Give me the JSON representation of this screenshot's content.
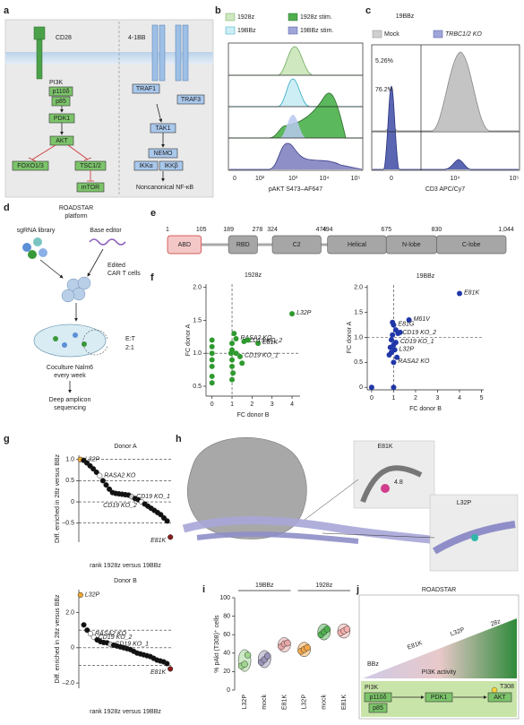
{
  "figure": {
    "panel_labels": [
      "a",
      "b",
      "c",
      "d",
      "e",
      "f",
      "g",
      "h",
      "i",
      "j"
    ],
    "a": {
      "cd28": "CD28",
      "bb": "4-1BB",
      "pi3k": "PI3K",
      "p110": "p110δ",
      "p85": "p85",
      "pdk1": "PDK1",
      "akt": "AKT",
      "foxo": "FOXO1/3",
      "tsc": "TSC1/2",
      "mtor": "mTOR",
      "traf1": "TRAF1",
      "traf3": "TRAF3",
      "tak1": "TAK1",
      "nemo": "NEMO",
      "ikka": "IKKα",
      "ikkb": "IKKβ",
      "nfkb": "Noncanonical NF-κB"
    },
    "b": {
      "legend": [
        "1928z",
        "1928z stim.",
        "19BBz",
        "19BBz stim."
      ],
      "xticks": [
        "0",
        "10²",
        "10³",
        "10⁴",
        "10⁵"
      ],
      "xlabel": "pAKT S473–AF647"
    },
    "c": {
      "title": "19BBz",
      "legend": [
        "Mock",
        "TRBC1/2 KO"
      ],
      "annotations": [
        "5.26%",
        "76.2%"
      ],
      "xticks": [
        "0",
        "10⁴",
        "10⁵"
      ],
      "xlabel": "CD3 APC/Cy7"
    },
    "d": {
      "title": [
        "ROADSTAR",
        "platform"
      ],
      "library": "sgRNA library",
      "editor": "Base editor",
      "edited": [
        "Edited",
        "CAR T cells"
      ],
      "ratio": [
        "E:T",
        "2:1"
      ],
      "coculture": [
        "Coculture Nalm6",
        "every week"
      ],
      "sequencing": [
        "Deep amplicon",
        "sequencing"
      ]
    },
    "e": {
      "positions": [
        1,
        105,
        189,
        278,
        324,
        474,
        494,
        675,
        830,
        {
          "value": 1044,
          "label": "1,044"
        }
      ],
      "domains": [
        "ABD",
        "RBD",
        "C2",
        "Helical",
        "N-lobe",
        "C-lobe"
      ]
    },
    "h": {
      "labels": [
        "E81K",
        "4.8",
        "L32P"
      ]
    },
    "j": {
      "title": "ROADSTAR",
      "low": "BBz",
      "e81k": "E81K",
      "l32p": "L32P",
      "high": "28z",
      "activity": "PI3K activity",
      "pi3k": "PI3K",
      "p110": "p110δ",
      "p85": "p85",
      "pdk1": "PDK1",
      "akt": "AKT",
      "site": "T308"
    }
  },
  "chart_data": [
    {
      "type": "scatter",
      "title": "1928z",
      "xlabel": "FC donor B",
      "ylabel": "FC donor A",
      "color": "#2f9a2f",
      "xlim": [
        -0.3,
        4.4
      ],
      "ylim": [
        0.35,
        2.05
      ],
      "xticks": [
        0,
        1,
        2,
        3,
        4
      ],
      "yticks": [
        0.5,
        {
          "value": 1.0,
          "label": "1.0"
        },
        1.5,
        {
          "value": 2.0,
          "label": "2.0"
        }
      ],
      "vlines": [
        1
      ],
      "hlines": [
        1
      ],
      "x": [
        4.0,
        2.3,
        1.6,
        1.2,
        1.4,
        0,
        0,
        0,
        0,
        0,
        0,
        0,
        1.0,
        1.0,
        1.0,
        1.0,
        1.0,
        1.05,
        1.1,
        1.5,
        1.8,
        0.95,
        1.2
      ],
      "values": [
        1.6,
        1.15,
        1.18,
        1.22,
        0.95,
        1.2,
        1.1,
        1.0,
        0.9,
        0.8,
        0.65,
        0.55,
        1.15,
        1.05,
        0.9,
        0.8,
        0.6,
        0.7,
        1.3,
        0.85,
        1.2,
        1.0,
        1.0
      ],
      "point_labels": [
        "L32P",
        "E81K",
        "CD19 KO_2",
        "RASA2 KO",
        "CD19 KO_1",
        null,
        null,
        null,
        null,
        null,
        null,
        null,
        null,
        null,
        null,
        null,
        null,
        null,
        null,
        null,
        null,
        null,
        null
      ]
    },
    {
      "type": "scatter",
      "title": "19BBz",
      "xlabel": "FC donor B",
      "ylabel": "FC donor A",
      "color": "#2137a8",
      "xlim": [
        -0.2,
        5.1
      ],
      "ylim": [
        -0.05,
        2.05
      ],
      "xticks": [
        0,
        1,
        2,
        3,
        4,
        5
      ],
      "yticks": [
        0,
        0.5,
        {
          "value": 1.0,
          "label": "1.0"
        },
        1.5,
        {
          "value": 2.0,
          "label": "2.0"
        }
      ],
      "vlines": [
        1
      ],
      "hlines": [
        1
      ],
      "x": [
        4.0,
        1.7,
        1.0,
        1.2,
        1.1,
        1.05,
        1.0,
        0,
        1.0,
        0.8,
        0.85,
        0.9,
        0.95,
        1.1,
        0.9,
        1.0,
        1.15,
        0.95,
        1.3
      ],
      "values": [
        1.88,
        1.35,
        1.25,
        1.08,
        0.9,
        0.75,
        0.5,
        0,
        0,
        0.65,
        0.8,
        0.95,
        1.05,
        1.15,
        0.7,
        0.85,
        0.6,
        1.3,
        1.1
      ],
      "point_labels": [
        "E81K",
        "M61V",
        "E81G",
        "CD19 KO_2",
        "CD19 KO_1",
        "L32P",
        "RASA2 KO",
        null,
        null,
        null,
        null,
        null,
        null,
        null,
        null,
        null,
        null,
        null,
        null
      ]
    },
    {
      "type": "rank",
      "title": "Donor A",
      "xlabel": "rank 1928z versus 19BBz",
      "ylabel": "Diff. enriched in 28z versus BBz",
      "ylim": [
        -0.95,
        1.1
      ],
      "yticks": [
        {
          "value": -0.5,
          "label": "–0.5"
        },
        0,
        0.5,
        {
          "value": 1.0,
          "label": "1.0"
        }
      ],
      "hlines": [
        1.0,
        0.5,
        0,
        -0.5
      ],
      "values": [
        1.0,
        0.98,
        0.92,
        0.85,
        0.78,
        0.7,
        0.62,
        0.5,
        0.4,
        0.3,
        0.22,
        0.2,
        0.19,
        0.18,
        0.17,
        0.16,
        0.12,
        0.08,
        0.05,
        0.0,
        -0.05,
        -0.1,
        -0.15,
        -0.2,
        -0.25,
        -0.3,
        -0.38,
        -0.45,
        -0.83
      ],
      "point_colors": [
        "#f0a830",
        "#111",
        "#111",
        "#111",
        "#111",
        "#111",
        "#fff",
        "#111",
        "#111",
        "#111",
        "#111",
        "#111",
        "#111",
        "#111",
        "#111",
        "#111",
        "#ccc",
        "#111",
        "#111",
        "#fff",
        "#111",
        "#111",
        "#111",
        "#111",
        "#111",
        "#111",
        "#111",
        "#111",
        "#8b1a1a"
      ],
      "point_labels": [
        "L32P",
        null,
        null,
        null,
        null,
        null,
        "RASA2 KO",
        null,
        null,
        null,
        null,
        null,
        null,
        null,
        null,
        null,
        "CD19 KO_1",
        null,
        null,
        "CD19 KO_2",
        null,
        null,
        null,
        null,
        null,
        null,
        null,
        null,
        "E81K"
      ]
    },
    {
      "type": "rank",
      "title": "Donor B",
      "xlabel": "rank 1928z versus 19BBz",
      "ylabel": "Diff. enriched in 28z versus BBz",
      "ylim": [
        -2.3,
        3.3
      ],
      "yticks": [
        {
          "value": -2,
          "label": "–2.0"
        },
        0,
        {
          "value": 2,
          "label": "2.0"
        }
      ],
      "hlines": [
        1,
        0,
        -1
      ],
      "values": [
        3.0,
        1.3,
        1.0,
        0.8,
        0.6,
        0.45,
        0.35,
        0.3,
        0.28,
        0.2,
        0.15,
        0.1,
        0.05,
        0.0,
        -0.05,
        -0.1,
        -0.2,
        -0.3,
        -0.35,
        -0.4,
        -0.45,
        -0.5,
        -0.6,
        -0.7,
        -0.75,
        -0.8,
        -0.9,
        -1.2
      ],
      "point_colors": [
        "#f0a830",
        "#111",
        "#111",
        "#fff",
        "#fff",
        "#111",
        "#111",
        "#111",
        "#111",
        "#ccc",
        "#111",
        "#111",
        "#111",
        "#111",
        "#111",
        "#111",
        "#111",
        "#111",
        "#111",
        "#111",
        "#111",
        "#111",
        "#111",
        "#111",
        "#111",
        "#111",
        "#111",
        "#8b1a1a"
      ],
      "point_labels": [
        "L32P",
        null,
        null,
        "RASA2 KO",
        "CD19 KO_2",
        null,
        null,
        null,
        null,
        "CD19 KO_1",
        null,
        null,
        null,
        null,
        null,
        null,
        null,
        null,
        null,
        null,
        null,
        null,
        null,
        null,
        null,
        null,
        null,
        "E81K"
      ]
    },
    {
      "type": "dot_violin",
      "ylabel": "% pAkt (T308)⁺ cells",
      "ylim": [
        0,
        100
      ],
      "yticks": [
        0,
        20,
        40,
        60,
        80,
        100
      ],
      "groups": [
        "19BBz",
        "1928z"
      ],
      "categories": [
        "L32P",
        "mock",
        "E81K",
        "L32P",
        "mock",
        "E81K"
      ],
      "colors": [
        "#9fd68f",
        "#9a93b8",
        "#e8a6a6",
        "#f2a64a",
        "#4fb04f",
        "#f2b0ac"
      ],
      "values": [
        [
          26,
          28,
          38
        ],
        [
          30,
          33,
          37
        ],
        [
          47,
          50,
          51
        ],
        [
          42,
          44,
          46
        ],
        [
          60,
          63,
          66
        ],
        [
          62,
          64,
          66
        ]
      ]
    }
  ]
}
